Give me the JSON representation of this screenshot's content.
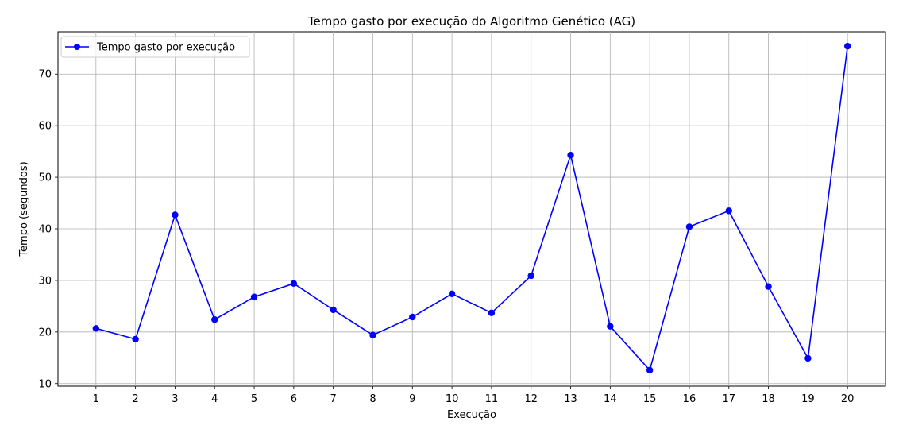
{
  "chart_data": {
    "type": "line",
    "title": "Tempo gasto por execução do Algoritmo Genético (AG)",
    "xlabel": "Execução",
    "ylabel": "Tempo (segundos)",
    "x": [
      1,
      2,
      3,
      4,
      5,
      6,
      7,
      8,
      9,
      10,
      11,
      12,
      13,
      14,
      15,
      16,
      17,
      18,
      19,
      20
    ],
    "x_ticks": [
      "1",
      "2",
      "3",
      "4",
      "5",
      "6",
      "7",
      "8",
      "9",
      "10",
      "11",
      "12",
      "13",
      "14",
      "15",
      "16",
      "17",
      "18",
      "19",
      "20"
    ],
    "y_ticks": [
      10,
      20,
      30,
      40,
      50,
      60,
      70
    ],
    "xlim": [
      0.04,
      20.96
    ],
    "ylim": [
      9.5,
      78.2
    ],
    "grid": true,
    "legend_position": "upper-left",
    "series": [
      {
        "name": "Tempo gasto por execução",
        "color": "#0000ff",
        "marker": "circle",
        "values": [
          20.7,
          18.6,
          42.7,
          22.4,
          26.8,
          29.4,
          24.3,
          19.4,
          22.9,
          27.4,
          23.7,
          30.9,
          54.3,
          21.1,
          12.6,
          40.4,
          43.5,
          28.8,
          14.9,
          75.4
        ]
      }
    ]
  }
}
